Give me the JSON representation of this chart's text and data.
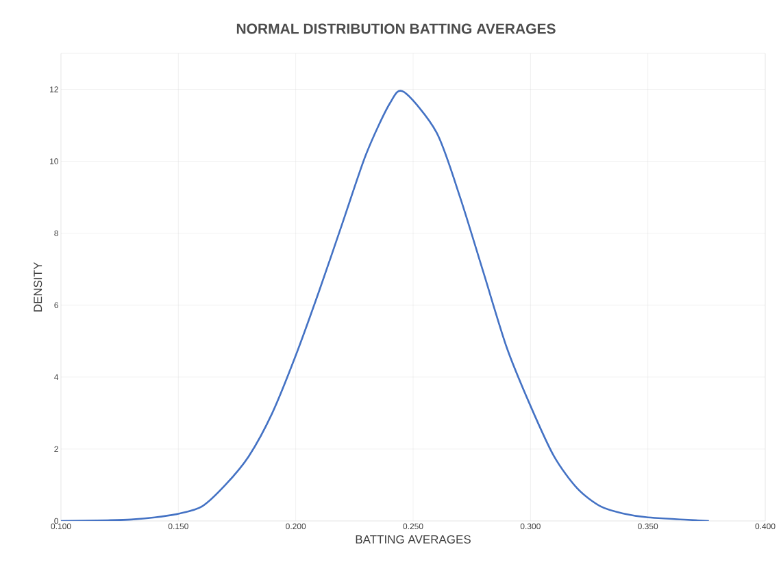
{
  "chart_data": {
    "type": "line",
    "title": "NORMAL DISTRIBUTION BATTING AVERAGES",
    "xlabel": "BATTING AVERAGES",
    "ylabel": "DENSITY",
    "xlim": [
      0.1,
      0.4
    ],
    "ylim": [
      0,
      13
    ],
    "xticks": [
      {
        "value": 0.1,
        "label": "0.100"
      },
      {
        "value": 0.15,
        "label": "0.150"
      },
      {
        "value": 0.2,
        "label": "0.200"
      },
      {
        "value": 0.25,
        "label": "0.250"
      },
      {
        "value": 0.3,
        "label": "0.300"
      },
      {
        "value": 0.35,
        "label": "0.350"
      },
      {
        "value": 0.4,
        "label": "0.400"
      }
    ],
    "yticks": [
      0,
      2,
      4,
      6,
      8,
      10,
      12
    ],
    "grid": true,
    "marker": "none",
    "line_style": "solid",
    "series": [
      {
        "color": "#4472c4",
        "x": [
          0.1,
          0.12,
          0.13,
          0.14,
          0.15,
          0.16,
          0.17,
          0.18,
          0.19,
          0.2,
          0.21,
          0.22,
          0.23,
          0.24,
          0.246,
          0.26,
          0.27,
          0.28,
          0.29,
          0.3,
          0.31,
          0.32,
          0.33,
          0.34,
          0.35,
          0.376
        ],
        "values": [
          0,
          0.02,
          0.04,
          0.1,
          0.2,
          0.4,
          1.0,
          1.8,
          3.0,
          4.6,
          6.4,
          8.3,
          10.2,
          11.6,
          11.93,
          10.8,
          9.0,
          6.9,
          4.8,
          3.2,
          1.8,
          0.9,
          0.4,
          0.2,
          0.1,
          0
        ]
      }
    ]
  }
}
